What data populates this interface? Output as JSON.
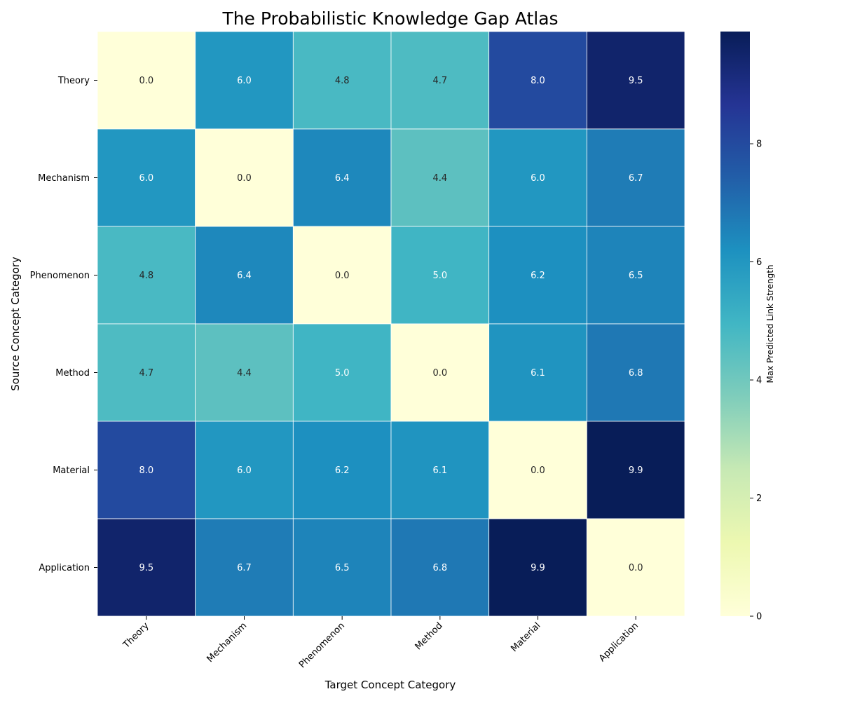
{
  "chart_data": {
    "type": "heatmap",
    "title": "The Probabilistic Knowledge Gap Atlas",
    "xlabel": "Target Concept Category",
    "ylabel": "Source Concept Category",
    "x_categories": [
      "Theory",
      "Mechanism",
      "Phenomenon",
      "Method",
      "Material",
      "Application"
    ],
    "y_categories": [
      "Theory",
      "Mechanism",
      "Phenomenon",
      "Method",
      "Material",
      "Application"
    ],
    "values": [
      [
        0.0,
        6.0,
        4.8,
        4.7,
        8.0,
        9.5
      ],
      [
        6.0,
        0.0,
        6.4,
        4.4,
        6.0,
        6.7
      ],
      [
        4.8,
        6.4,
        0.0,
        5.0,
        6.2,
        6.5
      ],
      [
        4.7,
        4.4,
        5.0,
        0.0,
        6.1,
        6.8
      ],
      [
        8.0,
        6.0,
        6.2,
        6.1,
        0.0,
        9.9
      ],
      [
        9.5,
        6.7,
        6.5,
        6.8,
        9.9,
        0.0
      ]
    ],
    "value_labels": [
      [
        "0.0",
        "6.0",
        "4.8",
        "4.7",
        "8.0",
        "9.5"
      ],
      [
        "6.0",
        "0.0",
        "6.4",
        "4.4",
        "6.0",
        "6.7"
      ],
      [
        "4.8",
        "6.4",
        "0.0",
        "5.0",
        "6.2",
        "6.5"
      ],
      [
        "4.7",
        "4.4",
        "5.0",
        "0.0",
        "6.1",
        "6.8"
      ],
      [
        "8.0",
        "6.0",
        "6.2",
        "6.1",
        "0.0",
        "9.9"
      ],
      [
        "9.5",
        "6.7",
        "6.5",
        "6.8",
        "9.9",
        "0.0"
      ]
    ],
    "colormap": "YlGnBu",
    "colorbar": {
      "label": "Max Predicted Link Strength",
      "range": [
        0,
        9.9
      ],
      "ticks": [
        0,
        2,
        4,
        6,
        8
      ],
      "tick_labels": [
        "0",
        "2",
        "4",
        "6",
        "8"
      ]
    },
    "annotations": true,
    "grid": false
  }
}
